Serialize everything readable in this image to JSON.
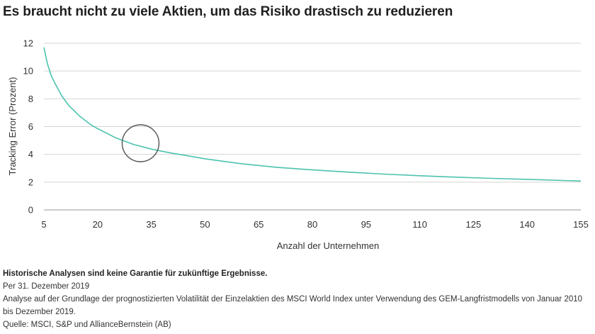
{
  "title": "Es braucht nicht zu viele Aktien, um das Risiko drastisch zu reduzieren",
  "chart_data": {
    "type": "line",
    "title": "Es braucht nicht zu viele Aktien, um das Risiko drastisch zu reduzieren",
    "xlabel": "Anzahl der Unternehmen",
    "ylabel": "Tracking Error (Prozent)",
    "xlim": [
      5,
      155
    ],
    "ylim": [
      0,
      12
    ],
    "xticks": [
      5,
      20,
      35,
      50,
      65,
      80,
      95,
      110,
      125,
      140,
      155
    ],
    "yticks": [
      0,
      2,
      4,
      6,
      8,
      10,
      12
    ],
    "grid": "horizontal",
    "series": [
      {
        "name": "Tracking Error",
        "color": "#4cc3ae",
        "x": [
          5,
          6,
          7,
          8,
          10,
          12,
          15,
          18,
          20,
          25,
          30,
          35,
          40,
          50,
          60,
          70,
          80,
          90,
          100,
          110,
          120,
          130,
          140,
          150,
          155
        ],
        "y": [
          11.7,
          10.5,
          9.7,
          9.15,
          8.2,
          7.5,
          6.75,
          6.15,
          5.85,
          5.2,
          4.72,
          4.38,
          4.12,
          3.68,
          3.33,
          3.07,
          2.88,
          2.72,
          2.58,
          2.46,
          2.36,
          2.27,
          2.2,
          2.12,
          2.08
        ]
      }
    ],
    "annotations": [
      {
        "type": "circle-highlight",
        "x": 32,
        "y": 4.8,
        "color": "#555555"
      }
    ]
  },
  "notes": {
    "disclaimer": "Historische Analysen sind keine Garantie für zukünftige Ergebnisse.",
    "date": "Per 31. Dezember 2019",
    "method": "Analyse auf der Grundlage der prognostizierten Volatilität der Einzelaktien des MSCI World Index unter Verwendung des GEM-Langfristmodells von Januar 2010 bis Dezember 2019.",
    "source": "Quelle: MSCI, S&P und AllianceBernstein (AB)"
  }
}
